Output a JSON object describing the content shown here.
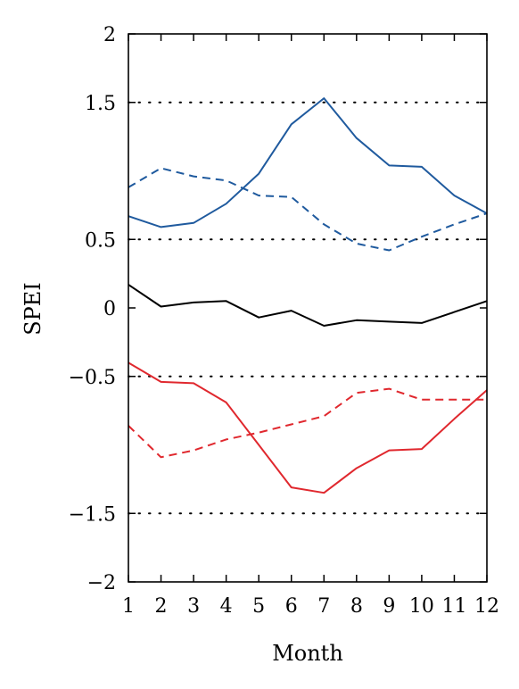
{
  "chart_data": {
    "type": "line",
    "xlabel": "Month",
    "ylabel": "SPEI",
    "x": [
      1,
      2,
      3,
      4,
      5,
      6,
      7,
      8,
      9,
      10,
      11,
      12
    ],
    "xlim": [
      1,
      12
    ],
    "ylim": [
      -2,
      2
    ],
    "xticks": [
      "1",
      "2",
      "3",
      "4",
      "5",
      "6",
      "7",
      "8",
      "9",
      "10",
      "11",
      "12"
    ],
    "yticks": [
      {
        "value": 2,
        "label": "2"
      },
      {
        "value": 1.5,
        "label": "1.5"
      },
      {
        "value": 0.5,
        "label": "0.5"
      },
      {
        "value": 0,
        "label": "0"
      },
      {
        "value": -0.5,
        "label": "−0.5"
      },
      {
        "value": -1.5,
        "label": "−1.5"
      },
      {
        "value": -2,
        "label": "−2"
      }
    ],
    "grid_y": [
      1.5,
      0.5,
      -0.5,
      -1.5
    ],
    "grid_style": "dotted",
    "series": [
      {
        "color": "#1f5a9e",
        "dash": "solid",
        "values": [
          0.67,
          0.59,
          0.62,
          0.76,
          0.98,
          1.34,
          1.53,
          1.24,
          1.04,
          1.03,
          0.82,
          0.69
        ]
      },
      {
        "color": "#1f5a9e",
        "dash": "dashed",
        "values": [
          0.88,
          1.02,
          0.96,
          0.93,
          0.82,
          0.81,
          0.61,
          0.47,
          0.42,
          0.52,
          0.61,
          0.69
        ]
      },
      {
        "color": "#000000",
        "dash": "solid",
        "values": [
          0.17,
          0.01,
          0.04,
          0.05,
          -0.07,
          -0.02,
          -0.13,
          -0.09,
          -0.1,
          -0.11,
          -0.03,
          0.05
        ]
      },
      {
        "color": "#e0282e",
        "dash": "solid",
        "values": [
          -0.4,
          -0.54,
          -0.55,
          -0.69,
          -1.0,
          -1.31,
          -1.35,
          -1.17,
          -1.04,
          -1.03,
          -0.81,
          -0.6
        ]
      },
      {
        "color": "#e0282e",
        "dash": "dashed",
        "values": [
          -0.86,
          -1.09,
          -1.04,
          -0.96,
          -0.91,
          -0.85,
          -0.79,
          -0.62,
          -0.59,
          -0.67,
          -0.67,
          -0.67
        ]
      }
    ]
  }
}
